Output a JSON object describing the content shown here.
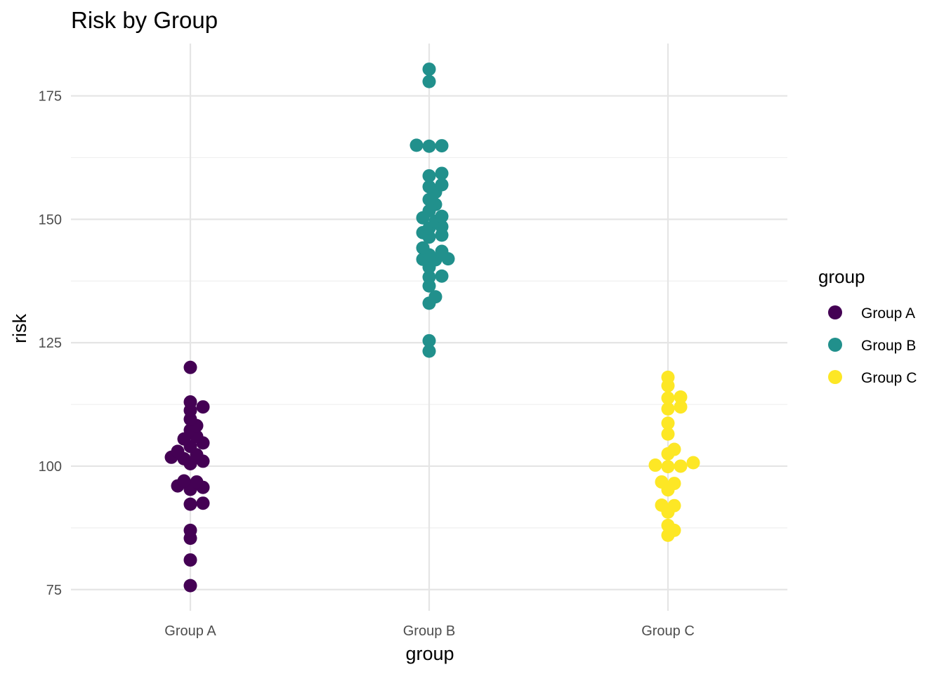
{
  "chart_data": {
    "type": "scatter",
    "title": "Risk by Group",
    "xlabel": "group",
    "ylabel": "risk",
    "categories": [
      "Group A",
      "Group B",
      "Group C"
    ],
    "ylim": [
      70.7,
      185.6
    ],
    "yticks": [
      75,
      100,
      125,
      150,
      175
    ],
    "grid": true,
    "legend": {
      "title": "group",
      "placement": "right",
      "entries": [
        "Group A",
        "Group B",
        "Group C"
      ]
    },
    "colors": {
      "Group A": "#440154",
      "Group B": "#21908c",
      "Group C": "#fde725"
    },
    "series": [
      {
        "name": "Group A",
        "values": [
          120.0,
          113.0,
          112.0,
          111.3,
          109.5,
          108.2,
          107.3,
          106.0,
          105.5,
          104.7,
          104.0,
          103.0,
          102.3,
          101.8,
          101.5,
          101.0,
          100.5,
          97.0,
          96.8,
          96.0,
          95.7,
          95.3,
          92.5,
          92.3,
          87.0,
          85.4,
          81.0,
          75.8
        ]
      },
      {
        "name": "Group B",
        "values": [
          180.4,
          177.9,
          165.0,
          164.9,
          164.8,
          159.3,
          158.8,
          157.0,
          156.6,
          155.5,
          154.0,
          153.0,
          151.7,
          150.6,
          150.3,
          149.6,
          148.5,
          148.2,
          147.3,
          146.8,
          146.4,
          144.2,
          143.5,
          142.8,
          142.0,
          141.9,
          141.8,
          140.3,
          138.5,
          138.3,
          136.5,
          134.3,
          133.0,
          125.4,
          123.3
        ]
      },
      {
        "name": "Group C",
        "values": [
          118.0,
          116.3,
          114.0,
          113.8,
          112.0,
          111.6,
          108.7,
          106.5,
          103.4,
          102.5,
          100.7,
          100.2,
          100.0,
          99.9,
          96.8,
          96.5,
          95.2,
          92.1,
          92.0,
          90.7,
          88.0,
          87.0,
          86.0
        ]
      }
    ]
  }
}
